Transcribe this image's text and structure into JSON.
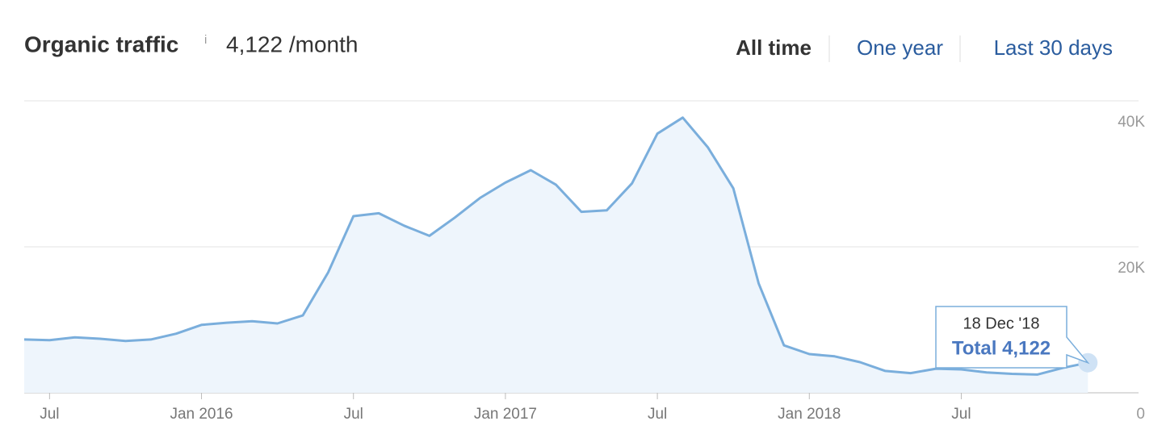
{
  "header": {
    "title": "Organic traffic",
    "info": "i",
    "summary": "4,122 /month",
    "tabs": [
      "All time",
      "One year",
      "Last 30 days"
    ],
    "active_tab": 0
  },
  "chart_data": {
    "type": "area",
    "color": "#7aaedc",
    "x": [
      "2015-06",
      "2015-07",
      "2015-08",
      "2015-09",
      "2015-10",
      "2015-11",
      "2015-12",
      "2016-01",
      "2016-02",
      "2016-03",
      "2016-04",
      "2016-05",
      "2016-06",
      "2016-07",
      "2016-08",
      "2016-09",
      "2016-10",
      "2016-11",
      "2016-12",
      "2017-01",
      "2017-02",
      "2017-03",
      "2017-04",
      "2017-05",
      "2017-06",
      "2017-07",
      "2017-08",
      "2017-09",
      "2017-10",
      "2017-11",
      "2017-12",
      "2018-01",
      "2018-02",
      "2018-03",
      "2018-04",
      "2018-05",
      "2018-06",
      "2018-07",
      "2018-08",
      "2018-09",
      "2018-10",
      "2018-11",
      "2018-12"
    ],
    "values": [
      7300,
      7200,
      7600,
      7400,
      7100,
      7300,
      8100,
      9300,
      9600,
      9800,
      9500,
      10600,
      16500,
      24200,
      24600,
      22900,
      21500,
      24000,
      26700,
      28800,
      30500,
      28500,
      24800,
      25000,
      28700,
      35500,
      37700,
      33600,
      28000,
      15000,
      6500,
      5300,
      5000,
      4200,
      3000,
      2700,
      3300,
      3200,
      2800,
      2600,
      2500,
      3400,
      4122
    ],
    "xlim": [
      "2015-06",
      "2019-02"
    ],
    "xticks": [
      {
        "value": "2015-07",
        "label": "Jul"
      },
      {
        "value": "2016-01",
        "label": "Jan 2016"
      },
      {
        "value": "2016-07",
        "label": "Jul"
      },
      {
        "value": "2017-01",
        "label": "Jan 2017"
      },
      {
        "value": "2017-07",
        "label": "Jul"
      },
      {
        "value": "2018-01",
        "label": "Jan 2018"
      },
      {
        "value": "2018-07",
        "label": "Jul"
      }
    ],
    "ylim": [
      0,
      40000
    ],
    "yticks": [
      0,
      {
        "value": 20000,
        "label": "20K"
      },
      {
        "value": 40000,
        "label": "40K"
      }
    ],
    "grid": true,
    "tooltip": {
      "date": "18 Dec '18",
      "label": "Total 4,122"
    }
  }
}
